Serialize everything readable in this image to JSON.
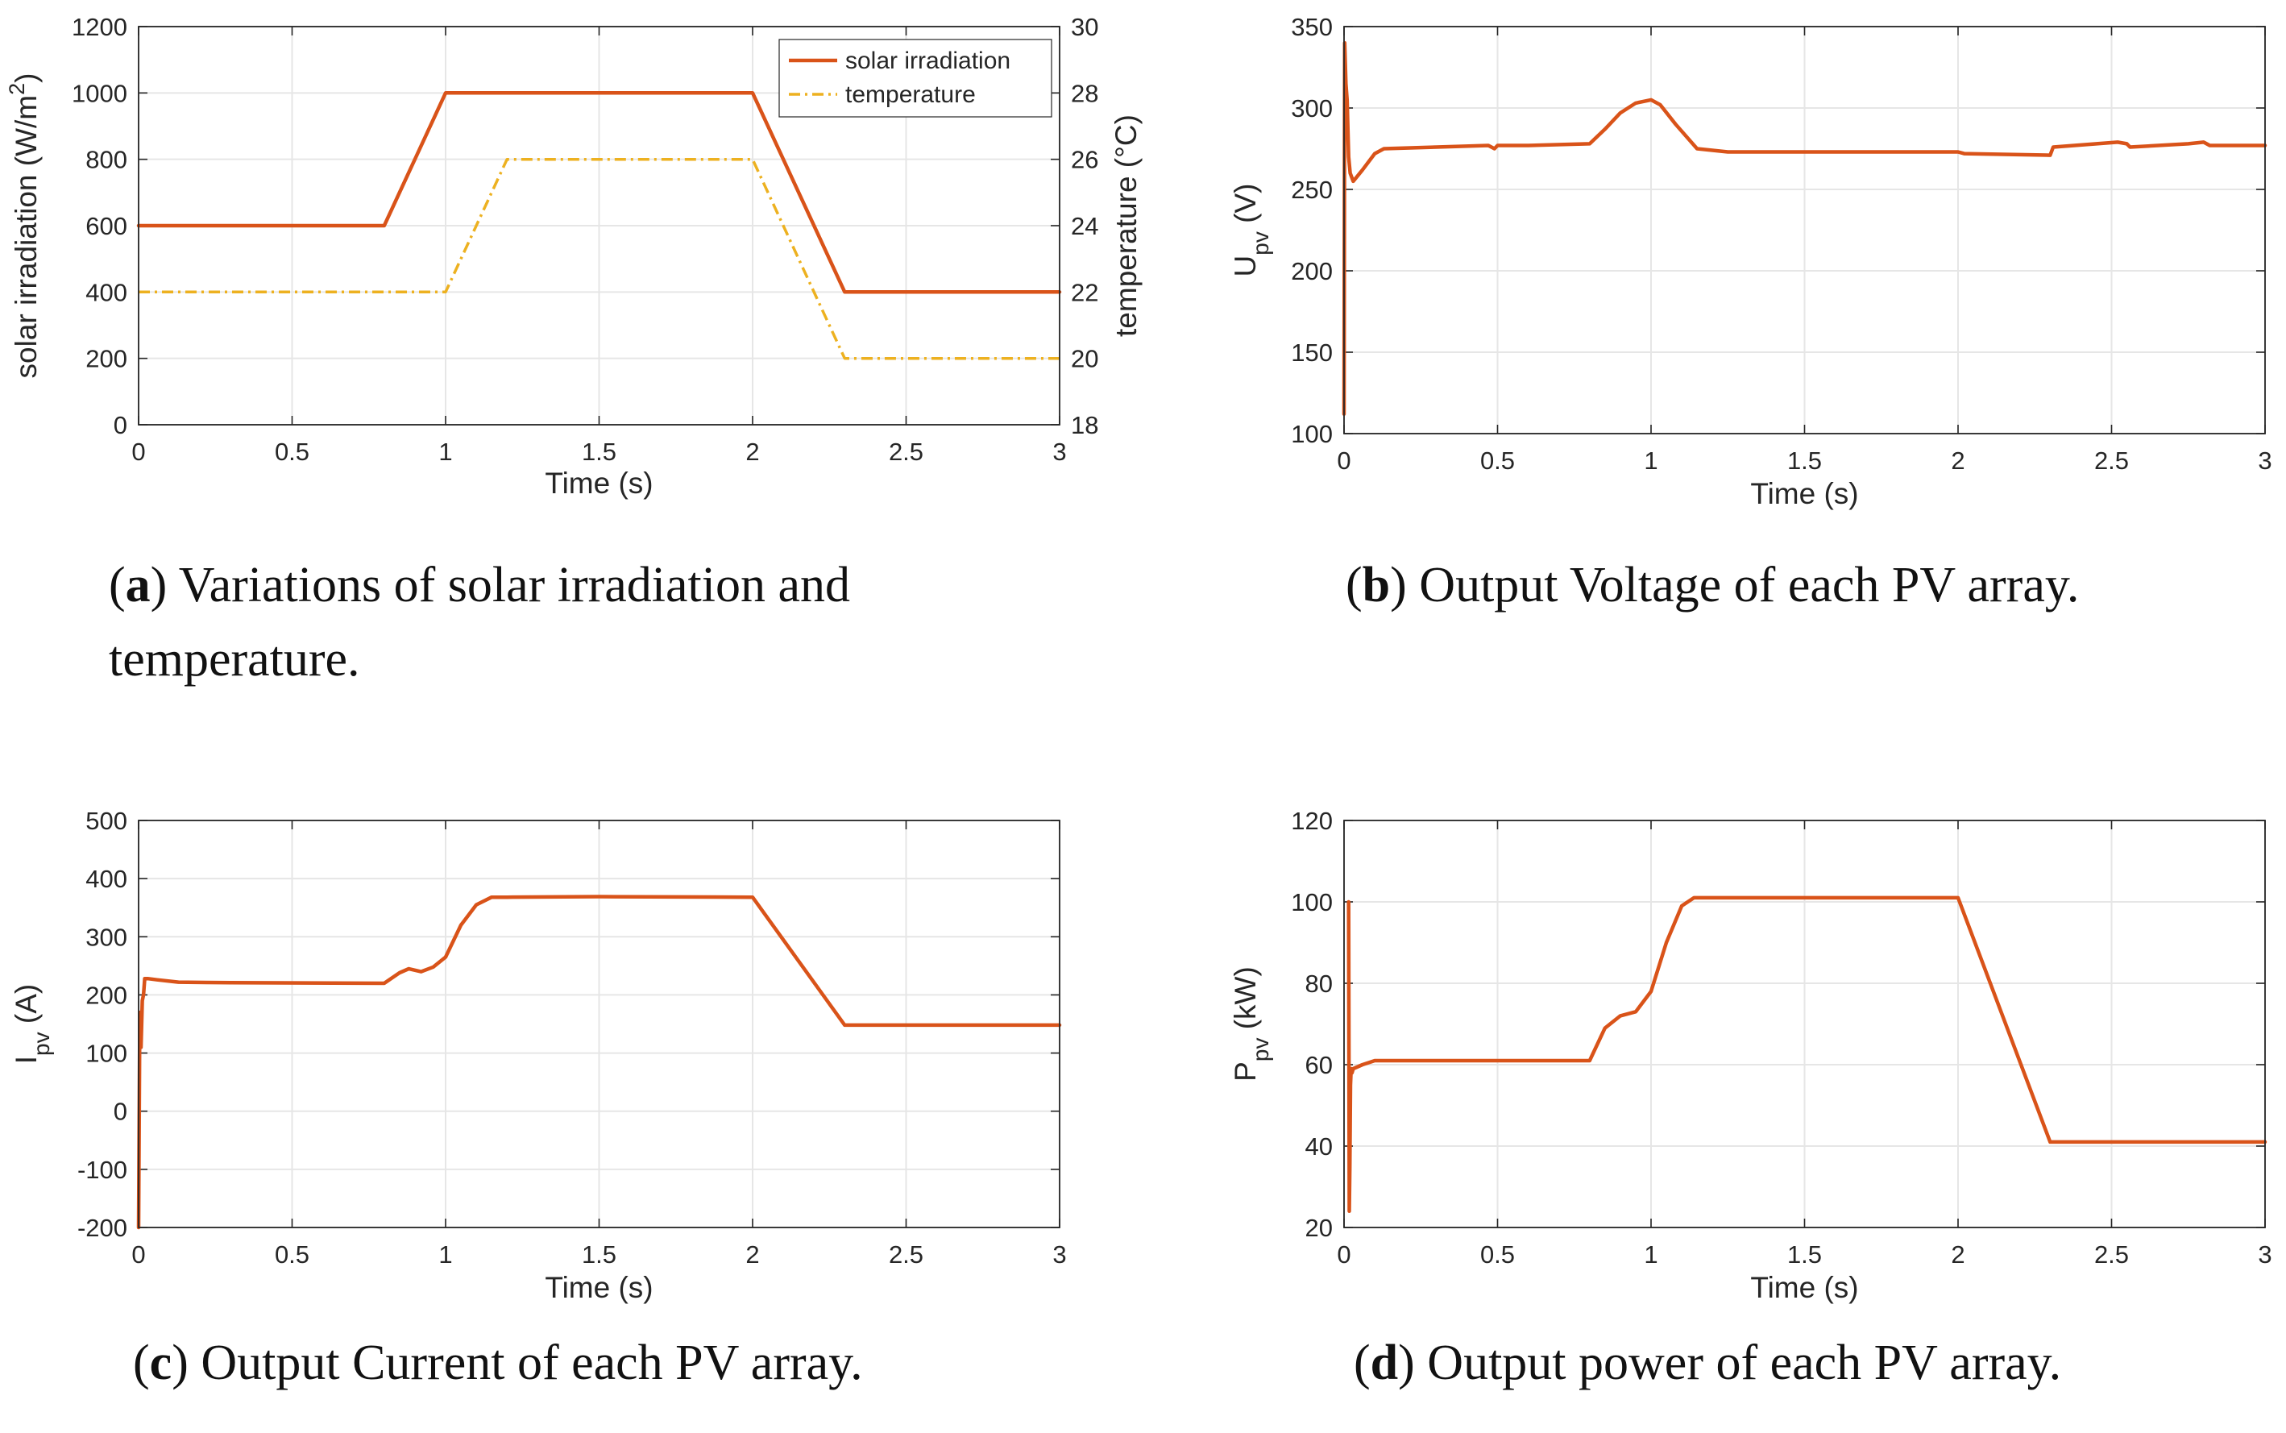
{
  "colors": {
    "primary": "#d95319",
    "secondary": "#edb120",
    "grid": "#e6e6e6",
    "axis": "#262626"
  },
  "chart_data": [
    {
      "id": "a",
      "type": "line",
      "caption": {
        "tag": "a",
        "text": "Variations of solar irradiation and temperature."
      },
      "xlabel": "Time (s)",
      "ylabel": "solar irradiation (W/m²)",
      "y2label": "temperature (°C)",
      "xlim": [
        0,
        3
      ],
      "ylim": [
        0,
        1200
      ],
      "y2lim": [
        18,
        30
      ],
      "xticks": [
        0,
        0.5,
        1,
        1.5,
        2,
        2.5,
        3
      ],
      "xtick_labels": [
        "0",
        "0.5",
        "1",
        "1.5",
        "2",
        "2.5",
        "3"
      ],
      "yticks": [
        0,
        200,
        400,
        600,
        800,
        1000,
        1200
      ],
      "ytick_labels": [
        "0",
        "200",
        "400",
        "600",
        "800",
        "1000",
        "1200"
      ],
      "y2ticks": [
        18,
        20,
        22,
        24,
        26,
        28,
        30
      ],
      "y2tick_labels": [
        "18",
        "20",
        "22",
        "24",
        "26",
        "28",
        "30"
      ],
      "grid": true,
      "legend_position": "top-right",
      "series": [
        {
          "name": "solar irradiation",
          "axis": "left",
          "style": "solid",
          "x": [
            0,
            0.8,
            1.0,
            2.0,
            2.3,
            3.0
          ],
          "y": [
            600,
            600,
            1000,
            1000,
            400,
            400
          ]
        },
        {
          "name": "temperature",
          "axis": "right",
          "style": "dashdot",
          "x": [
            0,
            1.0,
            1.2,
            2.0,
            2.3,
            3.0
          ],
          "y": [
            22,
            22,
            26,
            26,
            20,
            20
          ]
        }
      ]
    },
    {
      "id": "b",
      "type": "line",
      "caption": {
        "tag": "b",
        "text": "Output Voltage of each PV array."
      },
      "xlabel": "Time (s)",
      "ylabel": "U_pv (V)",
      "xlim": [
        0,
        3
      ],
      "ylim": [
        100,
        350
      ],
      "xticks": [
        0,
        0.5,
        1,
        1.5,
        2,
        2.5,
        3
      ],
      "xtick_labels": [
        "0",
        "0.5",
        "1",
        "1.5",
        "2",
        "2.5",
        "3"
      ],
      "yticks": [
        100,
        150,
        200,
        250,
        300,
        350
      ],
      "ytick_labels": [
        "100",
        "150",
        "200",
        "250",
        "300",
        "350"
      ],
      "grid": true,
      "series": [
        {
          "name": "U_pv",
          "style": "solid",
          "x": [
            0,
            0.002,
            0.006,
            0.01,
            0.015,
            0.02,
            0.03,
            0.06,
            0.1,
            0.13,
            0.3,
            0.47,
            0.49,
            0.5,
            0.6,
            0.8,
            0.85,
            0.9,
            0.95,
            1.0,
            1.03,
            1.08,
            1.15,
            1.2,
            1.25,
            1.3,
            1.5,
            1.7,
            2.0,
            2.02,
            2.3,
            2.31,
            2.52,
            2.55,
            2.56,
            2.75,
            2.8,
            2.82,
            3.0
          ],
          "y": [
            112,
            340,
            315,
            305,
            270,
            260,
            255,
            262,
            272,
            275,
            276,
            277,
            275,
            277,
            277,
            278,
            287,
            297,
            303,
            305,
            302,
            290,
            275,
            274,
            273,
            273,
            273,
            273,
            273,
            272,
            271,
            276,
            279,
            278,
            276,
            278,
            279,
            277,
            277
          ]
        }
      ]
    },
    {
      "id": "c",
      "type": "line",
      "caption": {
        "tag": "c",
        "text": "Output Current of each PV array."
      },
      "xlabel": "Time (s)",
      "ylabel": "I_pv (A)",
      "xlim": [
        0,
        3
      ],
      "ylim": [
        -200,
        500
      ],
      "xticks": [
        0,
        0.5,
        1,
        1.5,
        2,
        2.5,
        3
      ],
      "xtick_labels": [
        "0",
        "0.5",
        "1",
        "1.5",
        "2",
        "2.5",
        "3"
      ],
      "yticks": [
        -200,
        -100,
        0,
        100,
        200,
        300,
        400,
        500
      ],
      "ytick_labels": [
        "-200",
        "-100",
        "0",
        "100",
        "200",
        "300",
        "400",
        "500"
      ],
      "grid": true,
      "series": [
        {
          "name": "I_pv",
          "style": "solid",
          "x": [
            0,
            0.004,
            0.008,
            0.012,
            0.016,
            0.02,
            0.03,
            0.06,
            0.13,
            0.3,
            0.8,
            0.85,
            0.88,
            0.92,
            0.96,
            1.0,
            1.05,
            1.1,
            1.15,
            1.2,
            1.5,
            2.0,
            2.3,
            2.5,
            3.0
          ],
          "y": [
            -200,
            170,
            110,
            190,
            200,
            228,
            228,
            226,
            222,
            221,
            220,
            238,
            245,
            240,
            248,
            265,
            320,
            355,
            368,
            368,
            369,
            368,
            148,
            148,
            148
          ]
        }
      ]
    },
    {
      "id": "d",
      "type": "line",
      "caption": {
        "tag": "d",
        "text": "Output power of each PV array."
      },
      "xlabel": "Time (s)",
      "ylabel": "P_pv (kW)",
      "xlim": [
        0,
        3
      ],
      "ylim": [
        20,
        120
      ],
      "xticks": [
        0,
        0.5,
        1,
        1.5,
        2,
        2.5,
        3
      ],
      "xtick_labels": [
        "0",
        "0.5",
        "1",
        "1.5",
        "2",
        "2.5",
        "3"
      ],
      "yticks": [
        20,
        40,
        60,
        80,
        100,
        120
      ],
      "ytick_labels": [
        "20",
        "40",
        "60",
        "80",
        "100",
        "120"
      ],
      "grid": true,
      "series": [
        {
          "name": "P_pv",
          "style": "solid",
          "x": [
            0.015,
            0.017,
            0.019,
            0.021,
            0.023,
            0.026,
            0.03,
            0.06,
            0.1,
            0.13,
            0.5,
            0.8,
            0.85,
            0.9,
            0.95,
            1.0,
            1.05,
            1.1,
            1.14,
            1.2,
            1.5,
            2.0,
            2.3,
            3.0
          ],
          "y": [
            100,
            24,
            35,
            55,
            59,
            58,
            59,
            60,
            61,
            61,
            61,
            61,
            69,
            72,
            73,
            78,
            90,
            99,
            101,
            101,
            101,
            101,
            41,
            41
          ]
        }
      ]
    }
  ]
}
